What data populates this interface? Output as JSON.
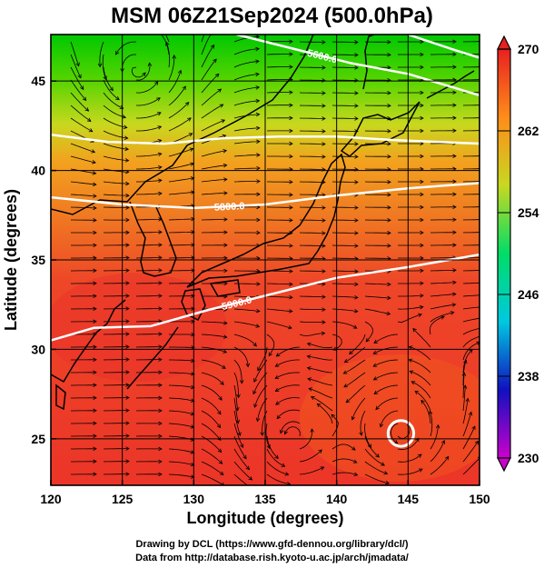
{
  "title": "MSM 06Z21Sep2024 (500.0hPa)",
  "chart_data": {
    "type": "map",
    "xlabel": "Longitude (degrees)",
    "ylabel": "Latitude  (degrees)",
    "xlim": [
      120,
      150
    ],
    "ylim": [
      22.4,
      47.6
    ],
    "xticks": [
      120,
      125,
      130,
      135,
      140,
      145,
      150
    ],
    "yticks": [
      25,
      30,
      35,
      40,
      45
    ],
    "colorbar": {
      "min": 230,
      "max": 270,
      "ticks": [
        230,
        238,
        246,
        254,
        262,
        270
      ],
      "colors": [
        "#cc00cc",
        "#1010c0",
        "#00c8e0",
        "#00dd66",
        "#c8d820",
        "#ff8c1a",
        "#e82020"
      ]
    },
    "contours": [
      {
        "label": "5800.0",
        "points": [
          [
            120,
            38.5
          ],
          [
            125,
            38.1
          ],
          [
            130,
            37.9
          ],
          [
            135,
            38.1
          ],
          [
            140,
            38.6
          ],
          [
            145,
            39.0
          ],
          [
            150,
            39.3
          ]
        ]
      },
      {
        "label": "5900.0",
        "points": [
          [
            120,
            30.5
          ],
          [
            123,
            31.2
          ],
          [
            127,
            31.3
          ],
          [
            131,
            32.2
          ],
          [
            135,
            33.0
          ],
          [
            140,
            34.0
          ],
          [
            145,
            34.6
          ],
          [
            150,
            35.3
          ]
        ]
      },
      {
        "label": "",
        "points": [
          [
            120,
            42.0
          ],
          [
            124,
            41.6
          ],
          [
            128,
            41.5
          ],
          [
            132,
            41.8
          ],
          [
            136,
            41.9
          ],
          [
            140,
            41.9
          ],
          [
            144,
            41.7
          ],
          [
            150,
            41.5
          ]
        ]
      },
      {
        "label": "5600.0",
        "points": [
          [
            133,
            47.6
          ],
          [
            137,
            46.8
          ],
          [
            141,
            46.0
          ],
          [
            145,
            45.4
          ],
          [
            150,
            44.2
          ]
        ]
      },
      {
        "label": "",
        "points": [
          [
            145,
            47.6
          ],
          [
            148,
            46.8
          ],
          [
            150,
            46.3
          ]
        ]
      }
    ],
    "closed_contour": {
      "center": [
        144.5,
        25.3
      ],
      "radius_deg": 0.9
    }
  },
  "footer": {
    "line1": "Drawing by DCL (https://www.gfd-dennou.org/library/dcl/)",
    "line2": "Data from http://database.rish.kyoto-u.ac.jp/arch/jmadata/"
  }
}
